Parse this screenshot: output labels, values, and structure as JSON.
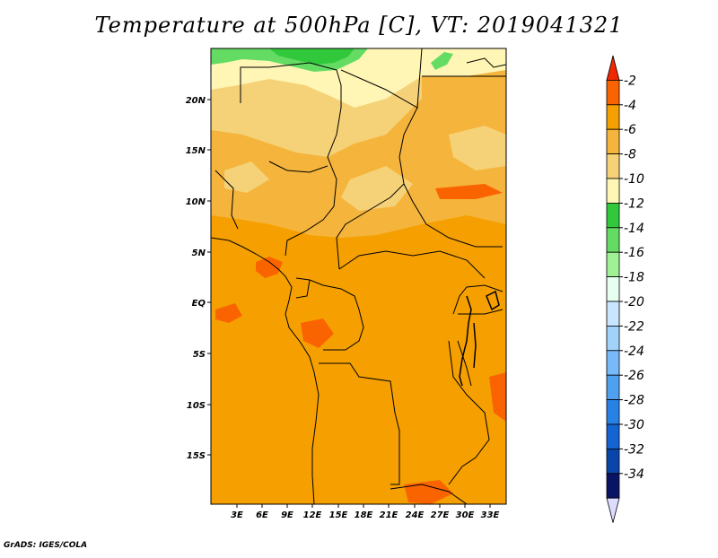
{
  "title": "Temperature at 500hPa [C], VT: 2019041321",
  "footer": "GrADS: IGES/COLA",
  "lat_ticks": [
    "20N",
    "15N",
    "10N",
    "5N",
    "EQ",
    "5S",
    "10S",
    "15S"
  ],
  "lon_ticks": [
    "3E",
    "6E",
    "9E",
    "12E",
    "15E",
    "18E",
    "21E",
    "24E",
    "27E",
    "30E",
    "33E"
  ],
  "colorbar": {
    "labels": [
      "-2",
      "-4",
      "-6",
      "-8",
      "-10",
      "-12",
      "-14",
      "-16",
      "-18",
      "-20",
      "-22",
      "-24",
      "-26",
      "-28",
      "-30",
      "-32",
      "-34"
    ],
    "colors": [
      "#f02800",
      "#fa6400",
      "#f5a000",
      "#f5b43c",
      "#f5d278",
      "#fff5b4",
      "#32c83c",
      "#64dc64",
      "#a0f096",
      "#e6fff0",
      "#c8e6ff",
      "#a0d2fa",
      "#78b9fa",
      "#50a0f0",
      "#2882e6",
      "#1464d2",
      "#0a46aa",
      "#0a1464",
      "#dcdcff"
    ]
  },
  "colors": {
    "ocean_base": "#f5a000",
    "land_mid": "#f5b43c",
    "land_light": "#f5d278",
    "land_pale": "#fff5b4",
    "green": "#32c83c",
    "green_light": "#64dc64",
    "hot": "#fa6400",
    "border": "#000000"
  }
}
